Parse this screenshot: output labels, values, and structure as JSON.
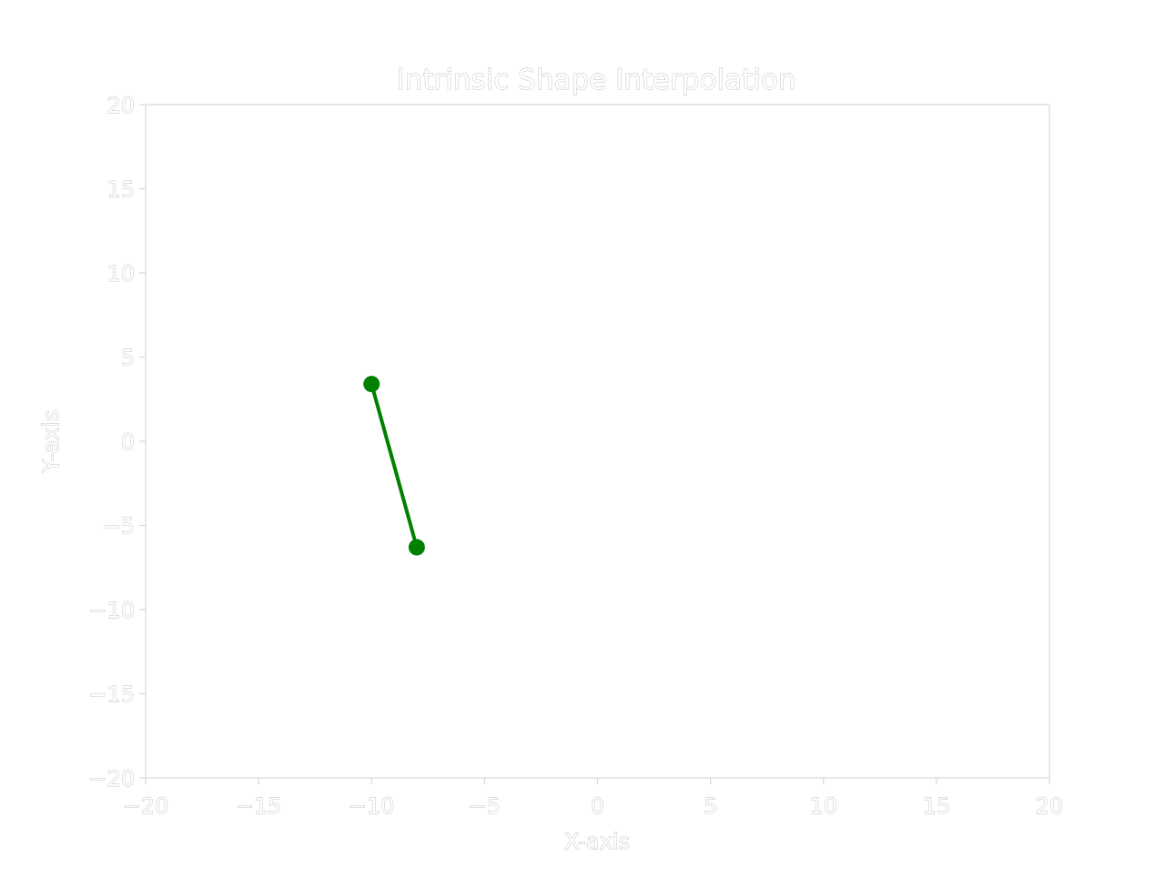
{
  "chart_data": {
    "type": "line",
    "title": "Intrinsic Shape Interpolation",
    "xlabel": "X-axis",
    "ylabel": "Y-axis",
    "xlim": [
      -20,
      20
    ],
    "ylim": [
      -20,
      20
    ],
    "xticks": [
      -20,
      -15,
      -10,
      -5,
      0,
      5,
      10,
      15,
      20
    ],
    "yticks": [
      -20,
      -15,
      -10,
      -5,
      0,
      5,
      10,
      15,
      20
    ],
    "x_tick_labels": [
      "−20",
      "−15",
      "−10",
      "−5",
      "0",
      "5",
      "10",
      "15",
      "20"
    ],
    "y_tick_labels": [
      "−20",
      "−15",
      "−10",
      "−5",
      "0",
      "5",
      "10",
      "15",
      "20"
    ],
    "grid": false,
    "series": [
      {
        "color": "#008000",
        "marker": "circle",
        "points": [
          {
            "x": -10.0,
            "y": 3.4
          },
          {
            "x": -8.0,
            "y": -6.3
          }
        ]
      }
    ]
  }
}
